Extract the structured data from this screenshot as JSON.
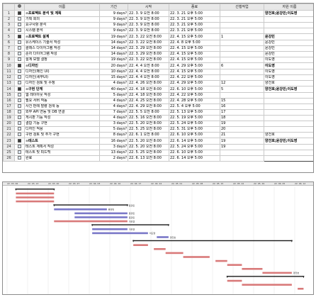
{
  "columns": {
    "info": "",
    "name": "이름",
    "duration": "기간",
    "start": "시작",
    "finish": "종료",
    "predecessors": "선행작업",
    "resources": "자원 이름"
  },
  "tasks": [
    {
      "id": "1",
      "type": "summary",
      "name": "프로젝트 분석 및 계획",
      "duration": "9 days?",
      "start": "22. 3. 9 오전 8:00",
      "finish": "22. 3. 21 오후 5:00",
      "pred": "",
      "res": "양건호;윤강민;이도영"
    },
    {
      "id": "2",
      "type": "task",
      "name": "기획 회의",
      "duration": "9 days?",
      "start": "22. 3. 9 오전 8:00",
      "finish": "22. 3. 21 오후 5:00",
      "pred": "",
      "res": ""
    },
    {
      "id": "3",
      "type": "task",
      "name": "요구사항 분석",
      "duration": "9 days?",
      "start": "22. 3. 9 오전 8:00",
      "finish": "22. 3. 21 오후 5:00",
      "pred": "",
      "res": ""
    },
    {
      "id": "4",
      "type": "task",
      "name": "시스템 분석",
      "duration": "9 days?",
      "start": "22. 3. 9 오전 8:00",
      "finish": "22. 3. 21 오후 5:00",
      "pred": "",
      "res": ""
    },
    {
      "id": "5",
      "type": "summary",
      "name": "프로젝트 설계",
      "duration": "19 days?",
      "start": "22. 3. 22 오전 8:00",
      "finish": "22. 4. 15 오후 5:00",
      "pred": "1",
      "res": "윤강민"
    },
    {
      "id": "6",
      "type": "task",
      "name": "유스케이스 기술서 작성",
      "duration": "14 days?",
      "start": "22. 3. 22 오전 8:00",
      "finish": "22. 4. 8 오후 5:00",
      "pred": "",
      "res": "윤강민"
    },
    {
      "id": "7",
      "type": "task",
      "name": "클래스 다이어그램 작성",
      "duration": "14 days?",
      "start": "22. 3. 29 오전 8:00",
      "finish": "22. 4. 15 오후 5:00",
      "pred": "",
      "res": "윤강민"
    },
    {
      "id": "8",
      "type": "task",
      "name": "순차 다이어그램 작성",
      "duration": "14 days?",
      "start": "22. 3. 29 오전 8:00",
      "finish": "22. 4. 15 오후 5:00",
      "pred": "",
      "res": "윤강민"
    },
    {
      "id": "9",
      "type": "task",
      "name": "설계 모델 결정",
      "duration": "19 days?",
      "start": "22. 3. 22 오전 8:00",
      "finish": "22. 4. 15 오후 5:00",
      "pred": "",
      "res": "이도영"
    },
    {
      "id": "10",
      "type": "summary",
      "name": "디자인",
      "duration": "20 days?",
      "start": "22. 4. 4 오전 8:00",
      "finish": "22. 4. 29 오후 5:00",
      "pred": "6",
      "res": "이도영"
    },
    {
      "id": "11",
      "type": "task",
      "name": "디자인(메인 UI)",
      "duration": "10 days?",
      "start": "22. 4. 4 오전 8:00",
      "finish": "22. 4. 15 오후 5:00",
      "pred": "",
      "res": "이도영"
    },
    {
      "id": "12",
      "type": "task",
      "name": "디자인(세부UI)",
      "duration": "15 days?",
      "start": "22. 4. 4 오전 8:00",
      "finish": "22. 4. 22 오후 5:00",
      "pred": "",
      "res": "이도영"
    },
    {
      "id": "13",
      "type": "task",
      "name": "디자인 검토 및 수정",
      "duration": "4 days?",
      "start": "22. 4. 26 오전 8:00",
      "finish": "22. 4. 29 오후 5:00",
      "pred": "12",
      "res": "양건호"
    },
    {
      "id": "14",
      "type": "summary",
      "name": "구현 단계",
      "duration": "40 days?",
      "start": "22. 4. 18 오전 8:00",
      "finish": "22. 6. 10 오후 5:00",
      "pred": "5",
      "res": "양건호;윤강민;이도영"
    },
    {
      "id": "15",
      "type": "task",
      "name": "웹 레이아웃 작성",
      "duration": "5 days?",
      "start": "22. 4. 18 오전 8:00",
      "finish": "22. 4. 22 오후 5:00",
      "pred": "",
      "res": ""
    },
    {
      "id": "16",
      "type": "task",
      "name": "필요 서버 작동",
      "duration": "4 days?",
      "start": "22. 4. 25 오전 8:00",
      "finish": "22. 4. 28 오후 5:00",
      "pred": "15",
      "res": ""
    },
    {
      "id": "17",
      "type": "task",
      "name": "사건 판례 발령 검색 등",
      "duration": "4 days?",
      "start": "22. 4. 29 오전 8:00",
      "finish": "22. 5. 4 오후 5:00",
      "pred": "16",
      "res": ""
    },
    {
      "id": "18",
      "type": "task",
      "name": "외부 API 연동 및 DB 연결",
      "duration": "7 days?",
      "start": "22. 5. 5 오전 8:00",
      "finish": "22. 5. 13 오후 5:00",
      "pred": "17",
      "res": ""
    },
    {
      "id": "19",
      "type": "task",
      "name": "게시판 기능 작성",
      "duration": "4 days?",
      "start": "22. 5. 16 오전 8:00",
      "finish": "22. 5. 19 오후 5:00",
      "pred": "18",
      "res": ""
    },
    {
      "id": "20",
      "type": "task",
      "name": "결합 기능 구현",
      "duration": "3 days?",
      "start": "22. 5. 20 오전 8:00",
      "finish": "22. 5. 24 오후 5:00",
      "pred": "19",
      "res": ""
    },
    {
      "id": "21",
      "type": "task",
      "name": "디자인 적용",
      "duration": "5 days?",
      "start": "22. 5. 25 오전 8:00",
      "finish": "22. 5. 31 오후 5:00",
      "pred": "20",
      "res": ""
    },
    {
      "id": "22",
      "type": "task",
      "name": "구현 검토 및 추가 구현",
      "duration": "8 days?",
      "start": "22. 6. 1 오전 8:00",
      "finish": "22. 6. 10 오후 5:00",
      "pred": "21",
      "res": "양건호"
    },
    {
      "id": "23",
      "type": "summary",
      "name": "테스트",
      "duration": "16 days?",
      "start": "22. 5. 20 오전 8:00",
      "finish": "22. 6. 14 오후 5:00",
      "pred": "19",
      "res": "양건호;윤강민;이도영"
    },
    {
      "id": "24",
      "type": "task",
      "name": "테스트 계획서 작성",
      "duration": "3 days?",
      "start": "22. 5. 20 오전 8:00",
      "finish": "22. 5. 24 오후 5:00",
      "pred": "19",
      "res": ""
    },
    {
      "id": "25",
      "type": "task",
      "name": "테스트 및 피드백",
      "duration": "13 days?",
      "start": "22. 5. 25 오전 8:00",
      "finish": "22. 6. 10 오후 5:00",
      "pred": "",
      "res": ""
    },
    {
      "id": "26",
      "type": "task",
      "name": "완료",
      "duration": "2 days?",
      "start": "22. 6. 13 오전 8:00",
      "finish": "22. 6. 14 오후 5:00",
      "pred": "",
      "res": ""
    }
  ],
  "gantt": {
    "weeks": [
      "22. 03. 06",
      "22. 03. 13",
      "22. 03. 20",
      "22. 03. 27",
      "22. 04. 03",
      "22. 04. 10",
      "22. 04. 17",
      "22. 04. 24",
      "22. 05. 01",
      "22. 05. 08",
      "22. 05. 15",
      "22. 05. 22",
      "22. 05. 29",
      "22. 06. 05",
      "22. 06. 12"
    ],
    "bar_labels": {
      "1": "",
      "5": "윤강민",
      "6": "윤강민",
      "7": "윤강민",
      "8": "윤강민",
      "9": "이도영",
      "10": "",
      "11": "이도영",
      "12": "이도영",
      "13": "양건호",
      "22": "양건호"
    },
    "colors": {
      "summary": "#1a1a1a",
      "critical": "#d97a7a",
      "normal": "#7a78c8"
    }
  }
}
